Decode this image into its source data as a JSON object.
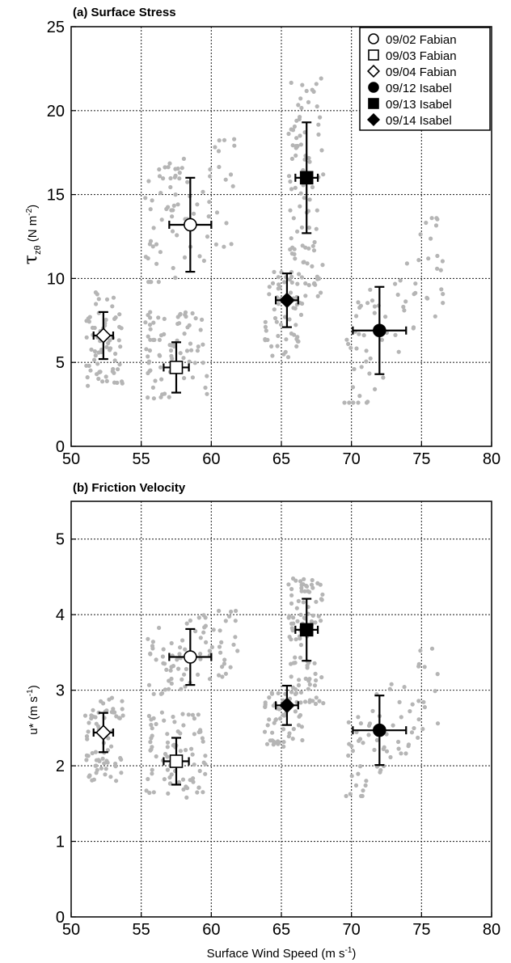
{
  "chart_data": [
    {
      "type": "scatter",
      "title": "(a) Surface Stress",
      "xlabel": "",
      "ylabel_main": "τ",
      "ylabel_sub": "zθ",
      "ylabel_rest": " (N m",
      "ylabel_sup": "-2",
      "ylabel_end": ")",
      "xlim": [
        50,
        80
      ],
      "ylim": [
        0,
        25
      ],
      "xticks": [
        "50",
        "55",
        "60",
        "65",
        "70",
        "75",
        "80"
      ],
      "yticks": [
        "0",
        "5",
        "10",
        "15",
        "20",
        "25"
      ],
      "grid": true,
      "legend_position": "top-right",
      "legend": [
        {
          "label": "09/02 Fabian",
          "marker": "circle-open"
        },
        {
          "label": "09/03 Fabian",
          "marker": "square-open"
        },
        {
          "label": "09/04 Fabian",
          "marker": "diamond-open"
        },
        {
          "label": "09/12 Isabel",
          "marker": "circle-filled"
        },
        {
          "label": "09/13 Isabel",
          "marker": "square-filled"
        },
        {
          "label": "09/14 Isabel",
          "marker": "diamond-filled"
        }
      ],
      "means": [
        {
          "x": 58.5,
          "y": 13.2,
          "xerr": 1.5,
          "yerr": 2.8,
          "marker": "circle-open"
        },
        {
          "x": 57.5,
          "y": 4.7,
          "xerr": 0.9,
          "yerr": 1.5,
          "marker": "square-open"
        },
        {
          "x": 52.3,
          "y": 6.6,
          "xerr": 0.7,
          "yerr": 1.4,
          "marker": "diamond-open"
        },
        {
          "x": 72.0,
          "y": 6.9,
          "xerr": 1.9,
          "yerr": 2.6,
          "marker": "circle-filled"
        },
        {
          "x": 66.8,
          "y": 16.0,
          "xerr": 0.8,
          "yerr": 3.3,
          "marker": "square-filled"
        },
        {
          "x": 65.4,
          "y": 8.7,
          "xerr": 0.8,
          "yerr": 1.6,
          "marker": "diamond-filled"
        }
      ],
      "scatter_clusters": [
        {
          "x0": 51.0,
          "x1": 53.7,
          "y0": 3.6,
          "y1": 9.2,
          "n": 70,
          "seed": 11,
          "tilt": 0.0
        },
        {
          "x0": 55.3,
          "x1": 59.7,
          "y0": 2.7,
          "y1": 8.2,
          "n": 80,
          "seed": 23,
          "tilt": 0.0
        },
        {
          "x0": 55.2,
          "x1": 62.0,
          "y0": 9.8,
          "y1": 18.3,
          "n": 80,
          "seed": 37,
          "tilt": 0.35
        },
        {
          "x0": 63.8,
          "x1": 66.5,
          "y0": 5.3,
          "y1": 10.4,
          "n": 55,
          "seed": 41,
          "tilt": 0.0
        },
        {
          "x0": 65.5,
          "x1": 68.0,
          "y0": 8.5,
          "y1": 22.2,
          "n": 95,
          "seed": 53,
          "tilt": 0.0
        },
        {
          "x0": 69.5,
          "x1": 76.6,
          "y0": 2.6,
          "y1": 13.6,
          "n": 70,
          "seed": 67,
          "tilt": 0.7
        }
      ]
    },
    {
      "type": "scatter",
      "title": "(b) Friction Velocity",
      "xlabel": "Surface Wind Speed (m s",
      "xlabel_sup": "-1",
      "xlabel_end": ")",
      "ylabel_main": "u* (m s",
      "ylabel_sup": "-1",
      "ylabel_end": ")",
      "xlim": [
        50,
        80
      ],
      "ylim": [
        0,
        5.5
      ],
      "xticks": [
        "50",
        "55",
        "60",
        "65",
        "70",
        "75",
        "80"
      ],
      "yticks": [
        "0",
        "1",
        "2",
        "3",
        "4",
        "5"
      ],
      "grid": true,
      "means": [
        {
          "x": 58.5,
          "y": 3.44,
          "xerr": 1.5,
          "yerr": 0.37,
          "marker": "circle-open"
        },
        {
          "x": 57.5,
          "y": 2.06,
          "xerr": 0.9,
          "yerr": 0.31,
          "marker": "square-open"
        },
        {
          "x": 52.3,
          "y": 2.44,
          "xerr": 0.7,
          "yerr": 0.26,
          "marker": "diamond-open"
        },
        {
          "x": 72.0,
          "y": 2.47,
          "xerr": 1.9,
          "yerr": 0.46,
          "marker": "circle-filled"
        },
        {
          "x": 66.8,
          "y": 3.8,
          "xerr": 0.8,
          "yerr": 0.41,
          "marker": "square-filled"
        },
        {
          "x": 65.4,
          "y": 2.8,
          "xerr": 0.8,
          "yerr": 0.26,
          "marker": "diamond-filled"
        }
      ],
      "scatter_clusters": [
        {
          "x0": 51.0,
          "x1": 53.7,
          "y0": 1.8,
          "y1": 2.9,
          "n": 70,
          "seed": 111,
          "tilt": 0.0
        },
        {
          "x0": 55.3,
          "x1": 59.7,
          "y0": 1.57,
          "y1": 2.72,
          "n": 80,
          "seed": 123,
          "tilt": 0.0
        },
        {
          "x0": 55.2,
          "x1": 62.0,
          "y0": 2.95,
          "y1": 4.05,
          "n": 80,
          "seed": 137,
          "tilt": 0.3
        },
        {
          "x0": 63.8,
          "x1": 66.5,
          "y0": 2.25,
          "y1": 3.05,
          "n": 55,
          "seed": 141,
          "tilt": 0.0
        },
        {
          "x0": 65.5,
          "x1": 68.0,
          "y0": 2.8,
          "y1": 4.5,
          "n": 95,
          "seed": 153,
          "tilt": 0.0
        },
        {
          "x0": 69.5,
          "x1": 76.6,
          "y0": 1.6,
          "y1": 3.55,
          "n": 70,
          "seed": 167,
          "tilt": 0.7
        }
      ]
    }
  ]
}
